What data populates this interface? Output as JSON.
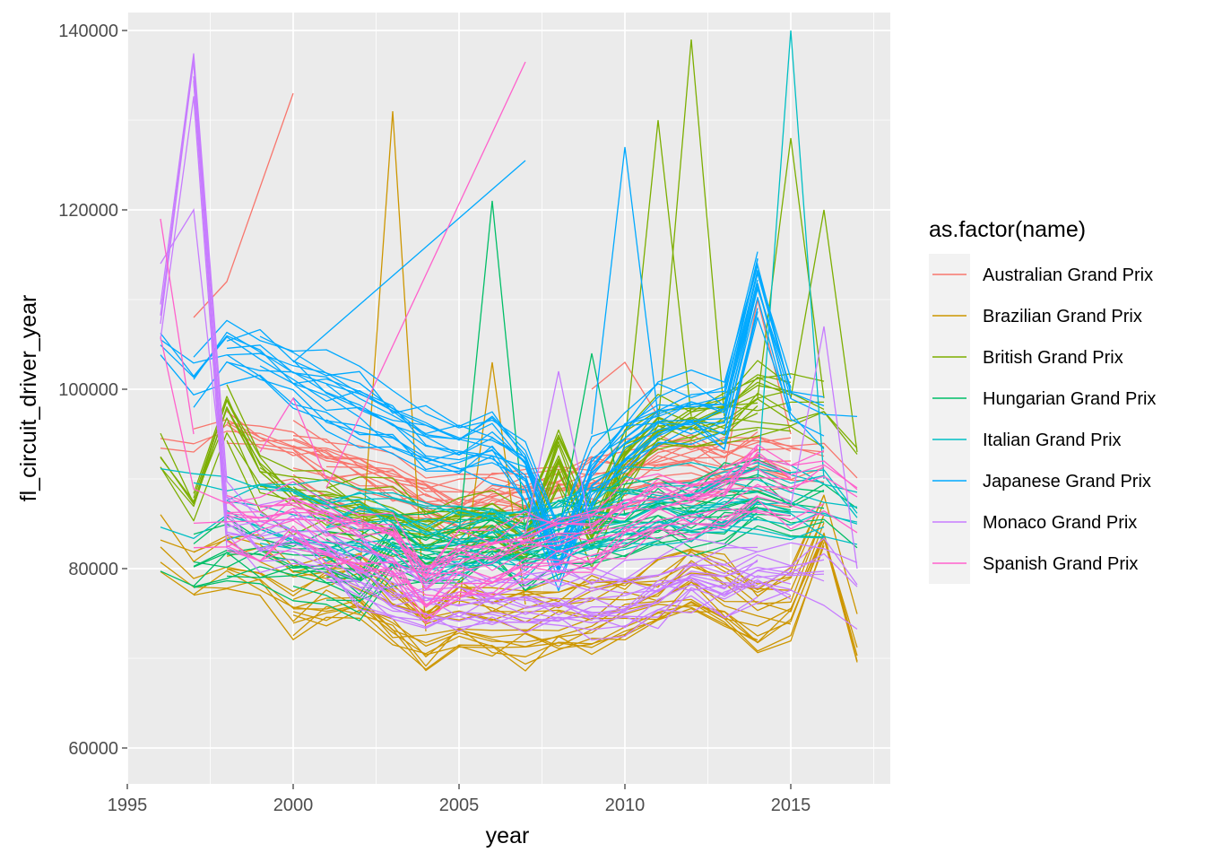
{
  "chart_data": {
    "type": "line",
    "xlabel": "year",
    "ylabel": "fl_circuit_driver_year",
    "xlim": [
      1995,
      2018
    ],
    "ylim": [
      56000,
      142000
    ],
    "x_ticks": [
      1995,
      2000,
      2005,
      2010,
      2015
    ],
    "y_ticks": [
      60000,
      80000,
      100000,
      120000,
      140000
    ],
    "grid": true,
    "legend": {
      "title": "as.factor(name)",
      "position": "right"
    },
    "series": [
      {
        "name": "Australian Grand Prix",
        "color": "#F8766D",
        "x": [
          1996,
          1997,
          1998,
          1999,
          2000,
          2001,
          2002,
          2003,
          2004,
          2005,
          2006,
          2007,
          2008,
          2009,
          2010,
          2011,
          2012,
          2013,
          2014,
          2015,
          2016,
          2017
        ],
        "center": [
          94000,
          93000,
          95000,
          93000,
          92500,
          91000,
          90000,
          88500,
          87500,
          86500,
          87000,
          87500,
          88000,
          89000,
          90000,
          91000,
          91500,
          91000,
          92000,
          91000,
          91500,
          89000
        ],
        "spikes": [
          [
            1997,
            108000,
            1998,
            112000,
            2000,
            133000
          ],
          [
            2009,
            100000,
            2010,
            103000,
            2011,
            97000
          ],
          [
            2013,
            91000,
            2014,
            110000,
            2015,
            95000
          ]
        ]
      },
      {
        "name": "Brazilian Grand Prix",
        "color": "#CD9600",
        "x": [
          1996,
          1997,
          1998,
          1999,
          2000,
          2001,
          2002,
          2003,
          2004,
          2005,
          2006,
          2007,
          2008,
          2009,
          2010,
          2011,
          2012,
          2013,
          2014,
          2015,
          2016,
          2017
        ],
        "center": [
          82000,
          79000,
          80000,
          79500,
          76500,
          77500,
          78000,
          75000,
          72500,
          74500,
          73500,
          73500,
          74500,
          75000,
          75500,
          77000,
          78500,
          77000,
          74500,
          76000,
          85000,
          72000
        ],
        "spikes": [
          [
            2002,
            79000,
            2003,
            131000,
            2004,
            73000
          ],
          [
            2005,
            76000,
            2006,
            103000,
            2007,
            76000
          ]
        ]
      },
      {
        "name": "British Grand Prix",
        "color": "#7CAE00",
        "x": [
          1996,
          1997,
          1998,
          1999,
          2000,
          2001,
          2002,
          2003,
          2004,
          2005,
          2006,
          2007,
          2008,
          2009,
          2010,
          2011,
          2012,
          2013,
          2014,
          2015,
          2016,
          2017
        ],
        "center": [
          93000,
          87000,
          97000,
          90000,
          88000,
          87000,
          86000,
          85500,
          84000,
          84500,
          85000,
          83000,
          92000,
          84000,
          92000,
          95500,
          96000,
          96500,
          98500,
          98000,
          97000,
          93000
        ],
        "spikes": [
          [
            2010,
            94000,
            2011,
            130000,
            2012,
            97000
          ],
          [
            2011,
            96000,
            2012,
            139000,
            2013,
            97000
          ],
          [
            2014,
            99000,
            2015,
            128000,
            2016,
            99000
          ],
          [
            2015,
            99000,
            2016,
            120000,
            2017,
            93000
          ]
        ]
      },
      {
        "name": "Hungarian Grand Prix",
        "color": "#00BE67",
        "x": [
          1996,
          1997,
          1998,
          1999,
          2000,
          2001,
          2002,
          2003,
          2004,
          2005,
          2006,
          2007,
          2008,
          2009,
          2010,
          2011,
          2012,
          2013,
          2014,
          2015,
          2016,
          2017
        ],
        "center": [
          82000,
          80000,
          81500,
          81000,
          80500,
          80000,
          79000,
          82500,
          81500,
          82500,
          83500,
          82000,
          83500,
          84000,
          85000,
          86000,
          86000,
          87000,
          88000,
          87000,
          86500,
          84000
        ],
        "spikes": [
          [
            2005,
            84000,
            2006,
            121000,
            2007,
            84000
          ],
          [
            2008,
            84000,
            2009,
            104000,
            2010,
            86000
          ]
        ]
      },
      {
        "name": "Italian Grand Prix",
        "color": "#00BFC4",
        "x": [
          1996,
          1997,
          1998,
          1999,
          2000,
          2001,
          2002,
          2003,
          2004,
          2005,
          2006,
          2007,
          2008,
          2009,
          2010,
          2011,
          2012,
          2013,
          2014,
          2015,
          2016,
          2017
        ],
        "center": [
          88500,
          87000,
          87500,
          86500,
          86000,
          85500,
          85000,
          84000,
          83000,
          83000,
          84000,
          83500,
          84500,
          85500,
          86500,
          87000,
          87000,
          88000,
          88500,
          87500,
          87500,
          85000
        ],
        "spikes": [
          [
            2014,
            90000,
            2015,
            140000,
            2016,
            90000
          ]
        ]
      },
      {
        "name": "Japanese Grand Prix",
        "color": "#00A9FF",
        "x": [
          1996,
          1997,
          1998,
          1999,
          2000,
          2001,
          2002,
          2003,
          2004,
          2005,
          2006,
          2007,
          2008,
          2009,
          2010,
          2011,
          2012,
          2013,
          2014,
          2015,
          2016,
          2017
        ],
        "center": [
          105000,
          101000,
          104000,
          103000,
          101000,
          99500,
          98000,
          96000,
          94500,
          93000,
          94000,
          91000,
          81000,
          90000,
          94000,
          97000,
          97500,
          97000,
          112000,
          99000,
          97500,
          95500
        ],
        "spikes": [
          [
            2000,
            103000,
            2007,
            125500
          ],
          [
            2009,
            95000,
            2010,
            127000,
            2011,
            97000
          ]
        ]
      },
      {
        "name": "Monaco Grand Prix",
        "color": "#C77CFF",
        "x": [
          1996,
          1997,
          1998,
          1999,
          2000,
          2001,
          2002,
          2003,
          2004,
          2005,
          2006,
          2007,
          2008,
          2009,
          2010,
          2011,
          2012,
          2013,
          2014,
          2015,
          2016,
          2017
        ],
        "center": [
          108000,
          136000,
          86000,
          84000,
          84000,
          82500,
          80000,
          78000,
          77000,
          77000,
          76500,
          76500,
          77000,
          76500,
          77000,
          78000,
          79500,
          79000,
          80500,
          80000,
          80500,
          78000
        ],
        "spikes": [
          [
            1996,
            114000,
            1997,
            120000,
            1998,
            86000
          ],
          [
            2007,
            84000,
            2008,
            102000,
            2009,
            84000
          ],
          [
            2015,
            87000,
            2016,
            107000,
            2017,
            80000
          ]
        ]
      },
      {
        "name": "Spanish Grand Prix",
        "color": "#FF61CC",
        "x": [
          1996,
          1997,
          1998,
          1999,
          2000,
          2001,
          2002,
          2003,
          2004,
          2005,
          2006,
          2007,
          2008,
          2009,
          2010,
          2011,
          2012,
          2013,
          2014,
          2015,
          2016,
          2017
        ],
        "center": [
          103000,
          85000,
          85000,
          84500,
          86000,
          84000,
          83500,
          82000,
          78000,
          80500,
          80500,
          82000,
          83000,
          83500,
          85500,
          87000,
          87500,
          88000,
          90500,
          89000,
          89500,
          87000
        ],
        "spikes": [
          [
            1996,
            119000,
            1997,
            95000
          ],
          [
            1999,
            93000,
            2000,
            99000,
            2001,
            90000
          ],
          [
            2001,
            89000,
            2007,
            136500
          ]
        ]
      }
    ]
  }
}
